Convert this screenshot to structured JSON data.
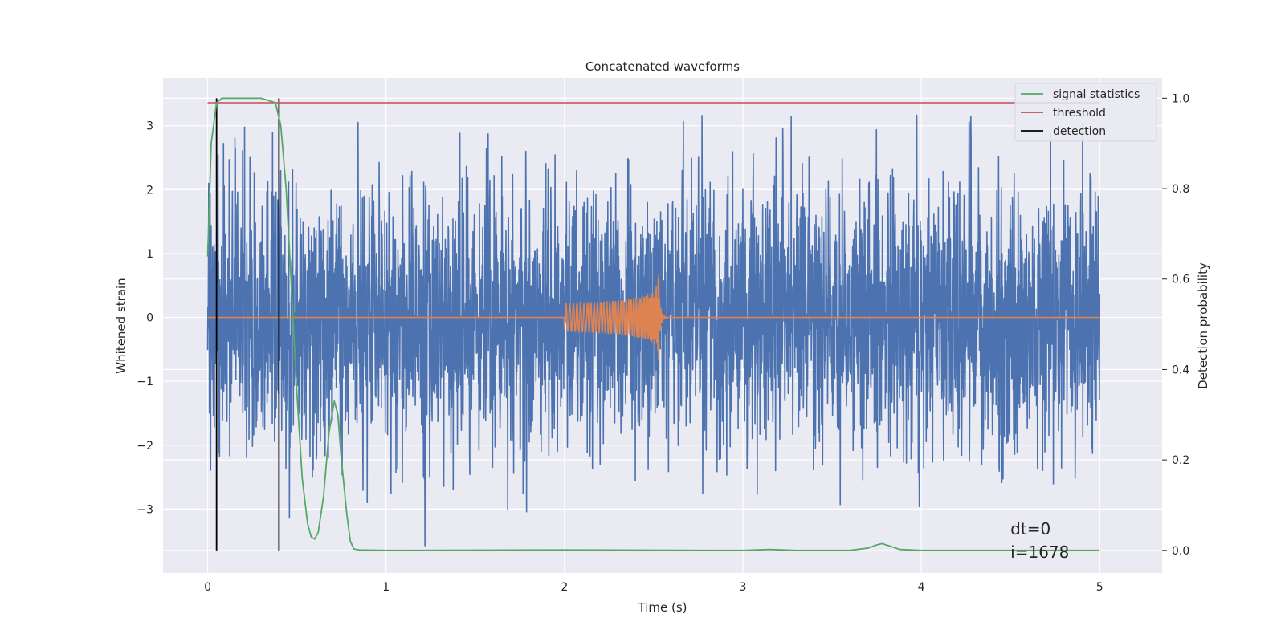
{
  "chart_data": {
    "type": "line",
    "title": "Concatenated waveforms",
    "xlabel": "Time (s)",
    "ylabel_left": "Whitened strain",
    "ylabel_right": "Detection probability",
    "xlim": [
      -0.25,
      5.35
    ],
    "ylim_left": [
      -4.0,
      3.75
    ],
    "ylim_right": [
      -0.05,
      1.045
    ],
    "x_ticks": [
      "0",
      "1",
      "2",
      "3",
      "4",
      "5"
    ],
    "y_left_ticks": [
      "−3",
      "−2",
      "−1",
      "0",
      "1",
      "2",
      "3"
    ],
    "y_right_ticks": [
      "0.0",
      "0.2",
      "0.4",
      "0.6",
      "0.8",
      "1.0"
    ],
    "grid": true,
    "legend_position": "top-right",
    "series": [
      {
        "name": "",
        "axis": "left",
        "color": "#4c72b0",
        "description_of_values": "whitened noise strain sampled densely over 0–5 s, amplitude roughly within −3.6 to 3.2",
        "x_range": [
          0,
          5
        ],
        "amplitude_range": [
          -3.6,
          3.2
        ]
      },
      {
        "name": "",
        "axis": "left",
        "color": "#dd8452",
        "chirp_start": 2.0,
        "chirp_peak": 2.53,
        "peak_amplitude": 0.75
      },
      {
        "name": "signal statistics",
        "axis": "right",
        "color": "#55a868",
        "x": [
          0,
          0.02,
          0.05,
          0.08,
          0.12,
          0.2,
          0.3,
          0.38,
          0.41,
          0.44,
          0.47,
          0.5,
          0.53,
          0.56,
          0.58,
          0.6,
          0.62,
          0.65,
          0.68,
          0.71,
          0.73,
          0.75,
          0.78,
          0.8,
          0.82,
          0.85,
          1.0,
          2.0,
          3.0,
          3.15,
          3.3,
          3.6,
          3.7,
          3.75,
          3.78,
          3.82,
          3.88,
          4.0,
          5.0
        ],
        "y": [
          0.65,
          0.9,
          0.99,
          1.0,
          1.0,
          1.0,
          1.0,
          0.99,
          0.94,
          0.8,
          0.58,
          0.35,
          0.16,
          0.06,
          0.03,
          0.025,
          0.04,
          0.12,
          0.26,
          0.33,
          0.3,
          0.2,
          0.08,
          0.02,
          0.003,
          0.001,
          0.0,
          0.001,
          0.0,
          0.002,
          0.0,
          0.0,
          0.005,
          0.012,
          0.015,
          0.01,
          0.002,
          0.0,
          0.0
        ]
      },
      {
        "name": "threshold",
        "axis": "right",
        "color": "#c44e52",
        "x": [
          0,
          5
        ],
        "y": [
          0.99,
          0.99
        ]
      },
      {
        "name": "detection",
        "axis": "right",
        "color": "#000000",
        "x_positions": [
          0.05,
          0.4
        ],
        "y_range": [
          0.0,
          1.0
        ]
      }
    ],
    "annotations": [
      "dt=0",
      "i=1678"
    ],
    "annotation_position": {
      "x": 4.5,
      "y_left": -3.4
    }
  }
}
